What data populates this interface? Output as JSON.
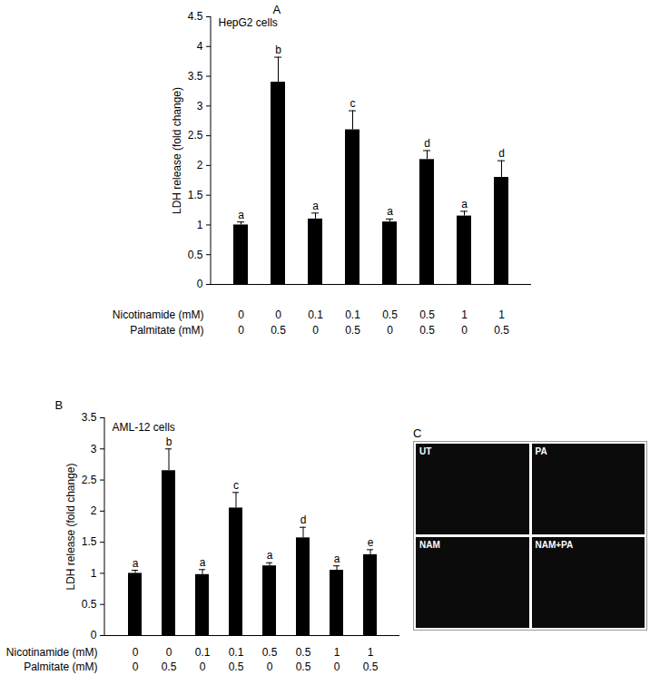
{
  "chart_data": [
    {
      "type": "bar",
      "panel": "A",
      "title": "HepG2 cells",
      "y_label": "LDH release (fold change)",
      "treatments": [
        {
          "label": "Nicotinamide (mM)",
          "values": [
            0,
            0,
            0.1,
            0.1,
            0.5,
            0.5,
            1,
            1
          ]
        },
        {
          "label": "Palmitate (mM)",
          "values": [
            0,
            0.5,
            0,
            0.5,
            0,
            0.5,
            0,
            0.5
          ]
        }
      ],
      "values": [
        1.0,
        3.4,
        1.1,
        2.6,
        1.05,
        2.1,
        1.15,
        1.8
      ],
      "errors": [
        0.05,
        0.42,
        0.1,
        0.32,
        0.05,
        0.15,
        0.08,
        0.28
      ],
      "significance_letters": [
        "a",
        "b",
        "a",
        "c",
        "a",
        "d",
        "a",
        "d"
      ],
      "color": "#000000",
      "ylim": [
        0,
        4.5
      ],
      "yticks": [
        0,
        0.5,
        1,
        1.5,
        2,
        2.5,
        3,
        3.5,
        4,
        4.5
      ],
      "grid": false,
      "tick_labels": "y"
    },
    {
      "type": "bar",
      "panel": "B",
      "title": "AML-12 cells",
      "y_label": "LDH release (fold change)",
      "treatments": [
        {
          "label": "Nicotinamide (mM)",
          "values": [
            0,
            0,
            0.1,
            0.1,
            0.5,
            0.5,
            1,
            1
          ]
        },
        {
          "label": "Palmitate (mM)",
          "values": [
            0,
            0.5,
            0,
            0.5,
            0,
            0.5,
            0,
            0.5
          ]
        }
      ],
      "values": [
        1.0,
        2.65,
        0.98,
        2.05,
        1.12,
        1.57,
        1.05,
        1.3
      ],
      "errors": [
        0.05,
        0.35,
        0.08,
        0.25,
        0.05,
        0.17,
        0.07,
        0.08
      ],
      "significance_letters": [
        "a",
        "b",
        "a",
        "c",
        "a",
        "d",
        "a",
        "e"
      ],
      "color": "#000000",
      "ylim": [
        0,
        3.5
      ],
      "yticks": [
        0,
        0.5,
        1,
        1.5,
        2,
        2.5,
        3,
        3.5
      ],
      "grid": false,
      "tick_labels": "y"
    }
  ],
  "panel_c": {
    "label": "C",
    "images": [
      "UT",
      "PA",
      "NAM",
      "NAM+PA"
    ]
  }
}
